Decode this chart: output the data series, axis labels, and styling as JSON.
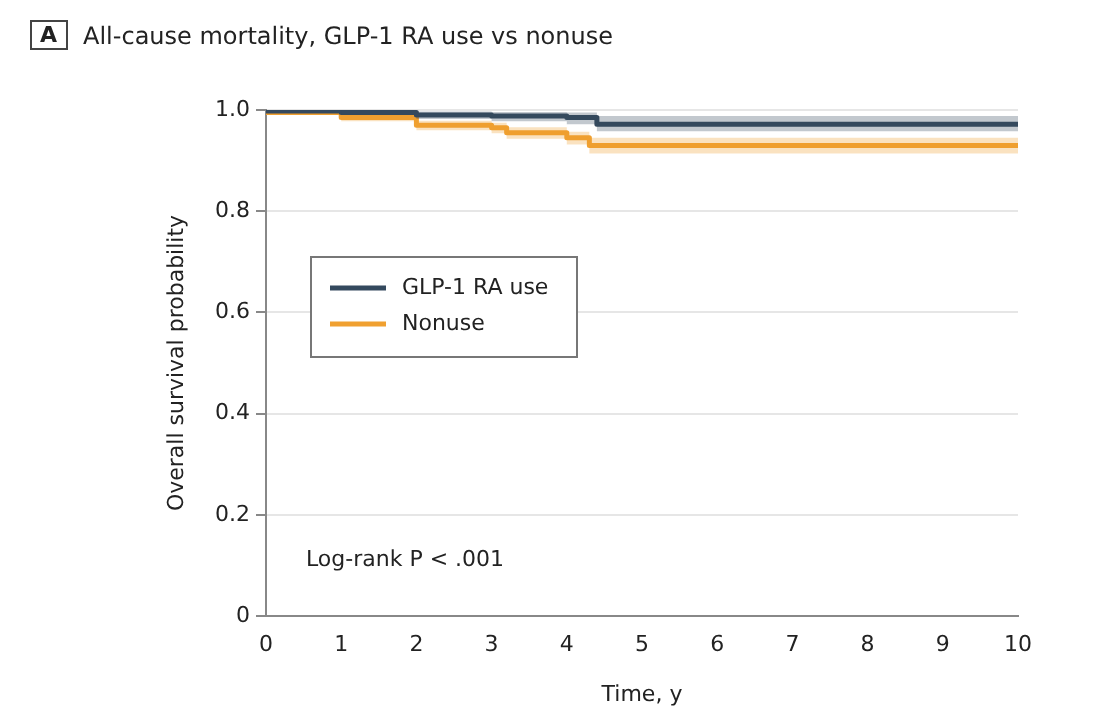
{
  "chart_data": {
    "type": "step",
    "title": "All-cause mortality, GLP-1 RA use vs nonuse",
    "xlabel": "Time, y",
    "ylabel": "Overall survival probability",
    "annotations": [
      "A",
      "Log-rank P < .001"
    ],
    "xlim": [
      0,
      10
    ],
    "xticks": [
      0,
      1,
      2,
      3,
      4,
      5,
      6,
      7,
      8,
      9,
      10
    ],
    "ylim": [
      0,
      1
    ],
    "yticks": [
      0,
      0.2,
      0.4,
      0.6,
      0.8,
      {
        "value": 1,
        "label": "1.0"
      }
    ],
    "grid": "y",
    "legend": "left",
    "line_style": "solid",
    "marker": "none",
    "series": [
      {
        "name": "GLP-1 RA use",
        "color": "#34495e",
        "x": [
          0,
          1,
          2,
          3,
          4,
          4.4,
          4.8,
          10
        ],
        "values": [
          1,
          0.998,
          0.995,
          0.99,
          0.988,
          0.985,
          0.972,
          0.972
        ],
        "lower": [
          1,
          0.995,
          0.99,
          0.982,
          0.978,
          0.972,
          0.958,
          0.958
        ],
        "upper": [
          1,
          1,
          0.999,
          0.997,
          0.996,
          0.995,
          0.988,
          0.988
        ]
      },
      {
        "name": "Nonuse",
        "color": "#f0a030",
        "x": [
          0,
          1,
          2,
          3,
          3.2,
          4,
          4.3,
          4.8,
          10
        ],
        "values": [
          1,
          0.995,
          0.985,
          0.97,
          0.965,
          0.955,
          0.945,
          0.93,
          0.93
        ],
        "lower": [
          1,
          0.992,
          0.978,
          0.96,
          0.954,
          0.943,
          0.932,
          0.914,
          0.914
        ],
        "upper": [
          1,
          0.998,
          0.991,
          0.979,
          0.975,
          0.966,
          0.957,
          0.945,
          0.945
        ]
      }
    ]
  }
}
